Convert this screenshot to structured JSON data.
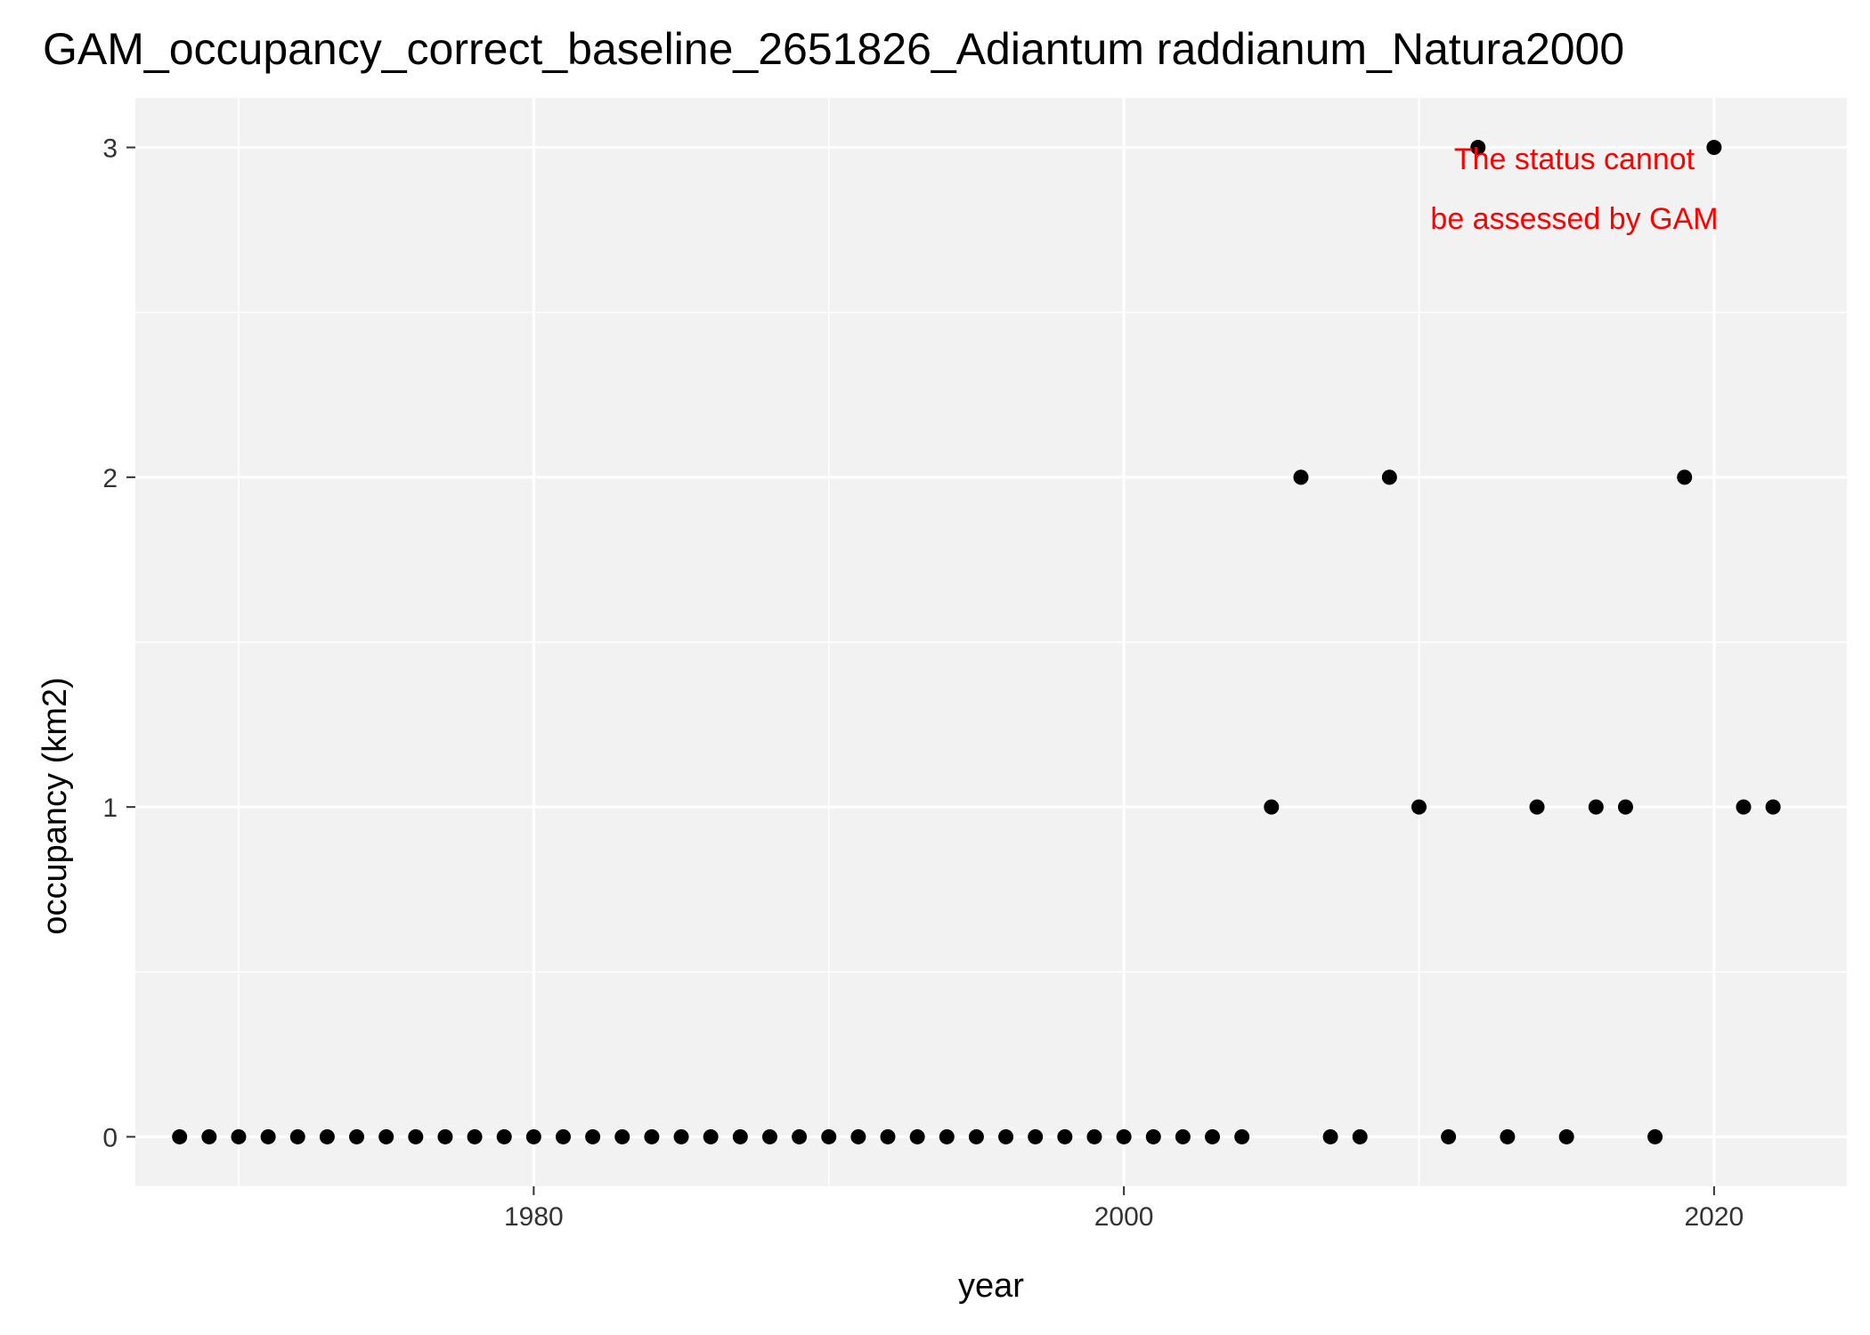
{
  "chart_data": {
    "type": "scatter",
    "title": "GAM_occupancy_correct_baseline_2651826_Adiantum raddianum_Natura2000",
    "xlabel": "year",
    "ylabel": "occupancy (km2)",
    "xlim": [
      1966.5,
      2024.5
    ],
    "ylim": [
      -0.15,
      3.15
    ],
    "x_ticks": [
      1980,
      2000,
      2020
    ],
    "x_tick_labels": [
      "1980",
      "2000",
      "2020"
    ],
    "y_ticks": [
      0,
      1,
      2,
      3
    ],
    "y_tick_labels": [
      "0",
      "1",
      "2",
      "3"
    ],
    "grid": true,
    "legend": "none",
    "point_color": "#000000",
    "panel_background": "#f2f2f2",
    "grid_color": "#ffffff",
    "annotation": {
      "lines": [
        "The status cannot",
        "be assessed by GAM"
      ],
      "color": "#ff0000",
      "position": "top-right"
    },
    "series": [
      {
        "name": "occupancy",
        "x": [
          1968,
          1969,
          1970,
          1971,
          1972,
          1973,
          1974,
          1975,
          1976,
          1977,
          1978,
          1979,
          1980,
          1981,
          1982,
          1983,
          1984,
          1985,
          1986,
          1987,
          1988,
          1989,
          1990,
          1991,
          1992,
          1993,
          1994,
          1995,
          1996,
          1997,
          1998,
          1999,
          2000,
          2001,
          2002,
          2003,
          2004,
          2005,
          2006,
          2007,
          2008,
          2009,
          2010,
          2011,
          2012,
          2013,
          2014,
          2015,
          2016,
          2017,
          2018,
          2019,
          2020,
          2021,
          2022
        ],
        "y": [
          0,
          0,
          0,
          0,
          0,
          0,
          0,
          0,
          0,
          0,
          0,
          0,
          0,
          0,
          0,
          0,
          0,
          0,
          0,
          0,
          0,
          0,
          0,
          0,
          0,
          0,
          0,
          0,
          0,
          0,
          0,
          0,
          0,
          0,
          0,
          0,
          0,
          1,
          2,
          0,
          0,
          2,
          1,
          0,
          3,
          0,
          1,
          0,
          1,
          1,
          0,
          2,
          3,
          1,
          1
        ]
      }
    ]
  }
}
